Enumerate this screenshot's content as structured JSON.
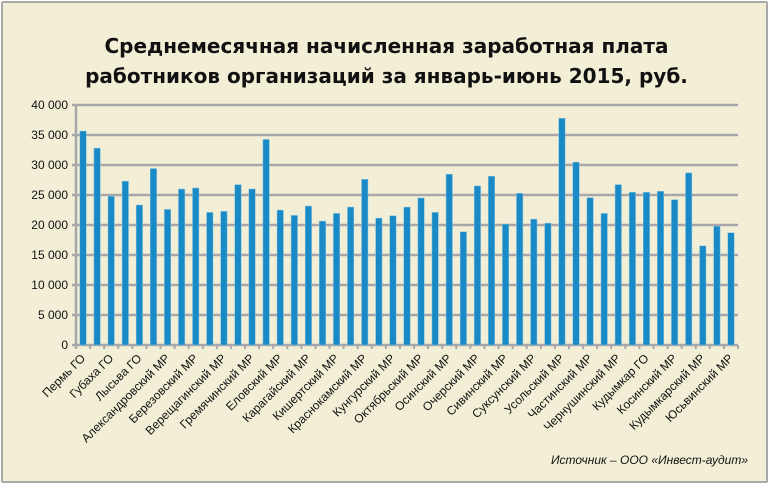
{
  "chart_data": {
    "type": "bar",
    "title_line1": "Среднемесячная начисленная заработная плата",
    "title_line2": "работников организаций за январь-июнь 2015, руб.",
    "xlabel": "",
    "ylabel": "",
    "ylim": [
      0,
      40000
    ],
    "yticks": [
      "0",
      "5 000",
      "10 000",
      "15 000",
      "20 000",
      "25 000",
      "30 000",
      "35 000",
      "40 000"
    ],
    "grid": true,
    "bar_color": "#1a8ac6",
    "categories": [
      "Пермь ГО",
      "",
      "Губаха ГО",
      "",
      "Лысьва ГО",
      "",
      "Александровский МР",
      "",
      "Березовский МР",
      "",
      "Верещагинский МР",
      "",
      "Гремячинский МР",
      "",
      "Еловский МР",
      "",
      "Карагайский МР",
      "",
      "Кишертский МР",
      "",
      "Краснокамский МР",
      "",
      "Кунгурский МР",
      "",
      "Октябрьский МР",
      "",
      "Осинский МР",
      "",
      "Очерский МР",
      "",
      "Сивинский МР",
      "",
      "Суксунский МР",
      "",
      "Усольский МР",
      "",
      "Частинский МР",
      "",
      "Чернушинский МР",
      "",
      "Кудымкар ГО",
      "",
      "Косинский  МР",
      "",
      "Кудымкарский МР",
      "",
      "Юсьвинский МР"
    ],
    "values": [
      35660,
      32810,
      24780,
      27290,
      23330,
      29410,
      22600,
      26000,
      26170,
      22100,
      22270,
      26730,
      26000,
      34260,
      22490,
      21600,
      23160,
      20650,
      21930,
      22990,
      27620,
      21150,
      21540,
      22990,
      24500,
      22100,
      28460,
      18860,
      26510,
      28130,
      20150,
      25280,
      20980,
      20310,
      37780,
      30470,
      24550,
      21930,
      26730,
      25450,
      25450,
      25610,
      24220,
      28680,
      16520,
      19810,
      18700
    ],
    "source": "Источник – ООО «Инвест-аудит»"
  }
}
